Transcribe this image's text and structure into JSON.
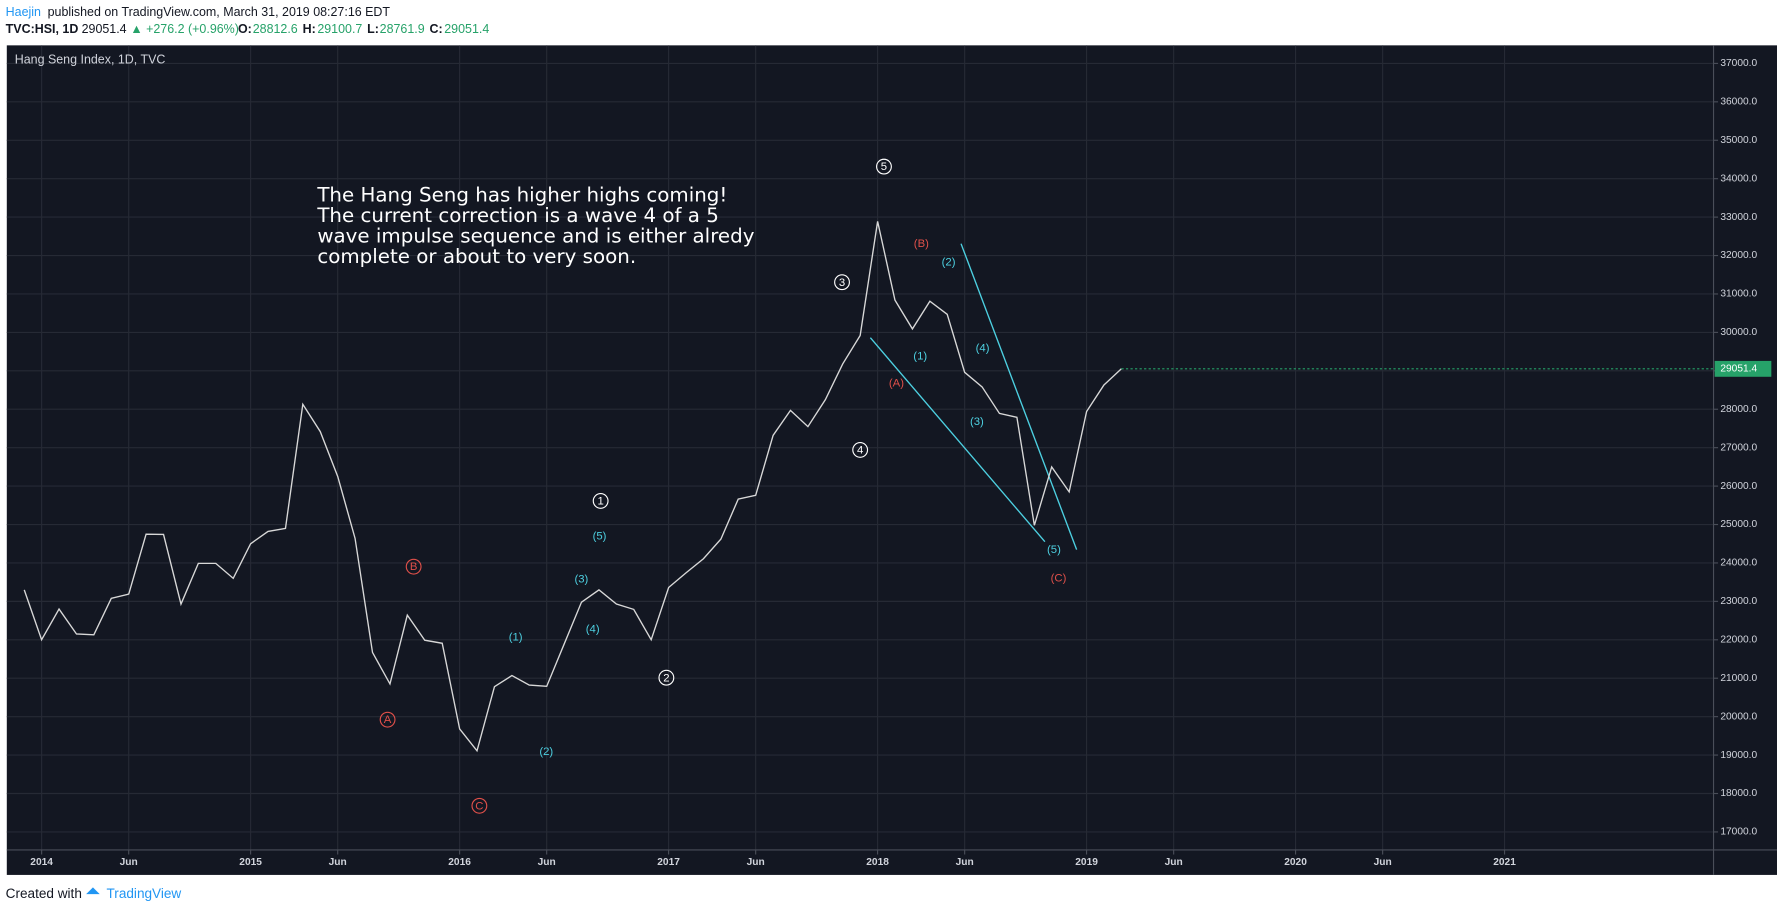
{
  "header": {
    "author": "Haejin",
    "published": "published on TradingView.com, March 31, 2019 08:27:16 EDT",
    "symbol": "TVC:HSI, 1D",
    "last": "29051.4",
    "change": "▲ +276.2 (+0.96%)",
    "open_label": "O:",
    "open": "28812.6",
    "high_label": "H:",
    "high": "29100.7",
    "low_label": "L:",
    "low": "28761.9",
    "close_label": "C:",
    "close": "29051.4"
  },
  "footer": {
    "created": "Created with",
    "brand": "TradingView"
  },
  "chart_data": {
    "type": "line",
    "title": "Hang Seng Index, 1D, TVC",
    "color": "#d8d8d8",
    "grid": true,
    "note": [
      "The Hang Seng has higher highs coming!",
      "The current correction is a wave 4 of a 5",
      "wave impulse sequence and is either alredy",
      "complete or about to very soon."
    ],
    "x": [
      "2013-12",
      "2014-01",
      "2014-02",
      "2014-03",
      "2014-04",
      "2014-05",
      "2014-06",
      "2014-07",
      "2014-08",
      "2014-09",
      "2014-10",
      "2014-11",
      "2014-12",
      "2015-01",
      "2015-02",
      "2015-03",
      "2015-04",
      "2015-05",
      "2015-06",
      "2015-07",
      "2015-08",
      "2015-09",
      "2015-10",
      "2015-11",
      "2015-12",
      "2016-01",
      "2016-02",
      "2016-03",
      "2016-04",
      "2016-05",
      "2016-06",
      "2016-07",
      "2016-08",
      "2016-09",
      "2016-10",
      "2016-11",
      "2016-12",
      "2017-01",
      "2017-02",
      "2017-03",
      "2017-04",
      "2017-05",
      "2017-06",
      "2017-07",
      "2017-08",
      "2017-09",
      "2017-10",
      "2017-11",
      "2017-12",
      "2018-01",
      "2018-02",
      "2018-03",
      "2018-04",
      "2018-05",
      "2018-06",
      "2018-07",
      "2018-08",
      "2018-09",
      "2018-10",
      "2018-11",
      "2018-12",
      "2019-01",
      "2019-02",
      "2019-03"
    ],
    "values": [
      23300,
      22000,
      22800,
      22150,
      22130,
      23080,
      23190,
      24750,
      24740,
      22930,
      23990,
      23990,
      23600,
      24500,
      24820,
      24900,
      28130,
      27420,
      26250,
      24640,
      21670,
      20850,
      22640,
      21990,
      21910,
      19680,
      19110,
      20780,
      21070,
      20820,
      20790,
      21890,
      22980,
      23300,
      22930,
      22790,
      22000,
      23360,
      23740,
      24110,
      24620,
      25660,
      25760,
      27320,
      27970,
      27550,
      28250,
      29180,
      29920,
      32890,
      30840,
      30090,
      30810,
      30470,
      28960,
      28580,
      27890,
      27790,
      24980,
      26500,
      25850,
      27940,
      28630,
      29051.4
    ],
    "last_color": "#26a269",
    "xlim": [
      "2013-11",
      "2022-01"
    ],
    "xticks": [
      {
        "value": "2014-01",
        "label": "2014"
      },
      {
        "value": "2014-06",
        "label": "Jun"
      },
      {
        "value": "2015-01",
        "label": "2015"
      },
      {
        "value": "2015-06",
        "label": "Jun"
      },
      {
        "value": "2016-01",
        "label": "2016"
      },
      {
        "value": "2016-06",
        "label": "Jun"
      },
      {
        "value": "2017-01",
        "label": "2017"
      },
      {
        "value": "2017-06",
        "label": "Jun"
      },
      {
        "value": "2018-01",
        "label": "2018"
      },
      {
        "value": "2018-06",
        "label": "Jun"
      },
      {
        "value": "2019-01",
        "label": "2019"
      },
      {
        "value": "2019-06",
        "label": "Jun"
      },
      {
        "value": "2020-01",
        "label": "2020"
      },
      {
        "value": "2020-06",
        "label": "Jun"
      },
      {
        "value": "2021-01",
        "label": "2021"
      }
    ],
    "ylim": [
      16530,
      37470
    ],
    "yticks": [
      {
        "value": 17000,
        "label": "17000.0"
      },
      {
        "value": 18000,
        "label": "18000.0"
      },
      {
        "value": 19000,
        "label": "19000.0"
      },
      {
        "value": 20000,
        "label": "20000.0"
      },
      {
        "value": 21000,
        "label": "21000.0"
      },
      {
        "value": 22000,
        "label": "22000.0"
      },
      {
        "value": 23000,
        "label": "23000.0"
      },
      {
        "value": 24000,
        "label": "24000.0"
      },
      {
        "value": 25000,
        "label": "25000.0"
      },
      {
        "value": 26000,
        "label": "26000.0"
      },
      {
        "value": 27000,
        "label": "27000.0"
      },
      {
        "value": 28000,
        "label": "28000.0"
      },
      {
        "value": 29000,
        "label": "29000.0"
      },
      {
        "value": 30000,
        "label": "30000.0"
      },
      {
        "value": 31000,
        "label": "31000.0"
      },
      {
        "value": 32000,
        "label": "32000.0"
      },
      {
        "value": 33000,
        "label": "33000.0"
      },
      {
        "value": 34000,
        "label": "34000.0"
      },
      {
        "value": 35000,
        "label": "35000.0"
      },
      {
        "value": 36000,
        "label": "36000.0"
      },
      {
        "value": 37000,
        "label": "37000.0"
      }
    ],
    "annotations": [
      {
        "text": "5",
        "color": "#ffffff",
        "circle": true
      },
      {
        "text": "3",
        "color": "#ffffff",
        "circle": true
      },
      {
        "text": "4",
        "color": "#ffffff",
        "circle": true
      },
      {
        "text": "1",
        "color": "#ffffff",
        "circle": true
      },
      {
        "text": "2",
        "color": "#ffffff",
        "circle": true
      },
      {
        "text": "B",
        "color": "#e0504a",
        "circle": true
      },
      {
        "text": "A",
        "color": "#e0504a",
        "circle": true
      },
      {
        "text": "C",
        "color": "#e0504a",
        "circle": true
      },
      {
        "text": "(5)",
        "color": "#4dd0e1",
        "circle": false
      },
      {
        "text": "(3)",
        "color": "#4dd0e1",
        "circle": false
      },
      {
        "text": "(4)",
        "color": "#4dd0e1",
        "circle": false
      },
      {
        "text": "(1)",
        "color": "#4dd0e1",
        "circle": false
      },
      {
        "text": "(2)",
        "color": "#4dd0e1",
        "circle": false
      },
      {
        "text": "(1)",
        "color": "#4dd0e1",
        "circle": false
      },
      {
        "text": "(2)",
        "color": "#4dd0e1",
        "circle": false
      },
      {
        "text": "(4)",
        "color": "#4dd0e1",
        "circle": false
      },
      {
        "text": "(3)",
        "color": "#4dd0e1",
        "circle": false
      },
      {
        "text": "(5)",
        "color": "#4dd0e1",
        "circle": false
      },
      {
        "text": "(B)",
        "color": "#e0504a",
        "circle": false
      },
      {
        "text": "(A)",
        "color": "#e0504a",
        "circle": false
      },
      {
        "text": "(C)",
        "color": "#e0504a",
        "circle": false
      }
    ]
  }
}
